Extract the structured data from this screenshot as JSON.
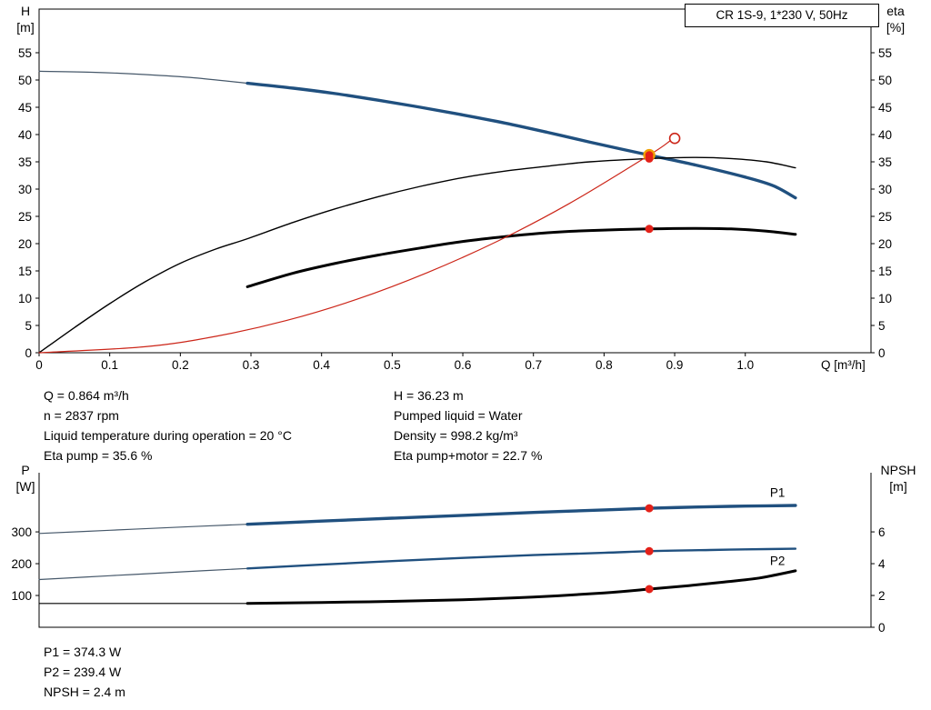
{
  "title_box": "CR 1S-9, 1*230 V, 50Hz",
  "colors": {
    "blue": "#20507f",
    "blue_thin": "#46586a",
    "black": "#000000",
    "red": "#cc2619",
    "marker_red": "#e32119",
    "marker_orange": "#f0a000"
  },
  "axis_corner_labels": {
    "h": [
      "H",
      "[m]"
    ],
    "eta": [
      "eta",
      "[%]"
    ],
    "p": [
      "P",
      "[W]"
    ],
    "npsh": [
      "NPSH",
      "[m]"
    ]
  },
  "readouts": {
    "left": [
      "Q = 0.864 m³/h",
      "n = 2837 rpm",
      "Liquid temperature during operation = 20 °C",
      "Eta pump = 35.6 %"
    ],
    "right": [
      "H = 36.23 m",
      "Pumped liquid = Water",
      "Density = 998.2 kg/m³",
      "Eta pump+motor = 22.7 %"
    ],
    "power": [
      "P1 = 374.3 W",
      "P2 = 239.4 W",
      "NPSH = 2.4 m"
    ]
  },
  "chart_data": [
    {
      "id": "top",
      "type": "line",
      "title": "CR 1S-9, 1*230 V, 50Hz",
      "xlabel": "Q [m³/h]",
      "ylabel_left": "H [m]",
      "ylabel_right": "eta [%]",
      "xlim": [
        0,
        1.178
      ],
      "ylim_left": [
        0,
        63
      ],
      "ylim_right": [
        0,
        63
      ],
      "frame": "box",
      "grid": false,
      "x_ticks": [
        {
          "v": 0,
          "t": "0"
        },
        {
          "v": 0.1,
          "t": "0.1"
        },
        {
          "v": 0.2,
          "t": "0.2"
        },
        {
          "v": 0.3,
          "t": "0.3"
        },
        {
          "v": 0.4,
          "t": "0.4"
        },
        {
          "v": 0.5,
          "t": "0.5"
        },
        {
          "v": 0.6,
          "t": "0.6"
        },
        {
          "v": 0.7,
          "t": "0.7"
        },
        {
          "v": 0.8,
          "t": "0.8"
        },
        {
          "v": 0.9,
          "t": "0.9"
        },
        {
          "v": 1.0,
          "t": "1.0"
        }
      ],
      "x_unit_label": "Q [m³/h]",
      "y_left_ticks": [
        0,
        5,
        10,
        15,
        20,
        25,
        30,
        35,
        40,
        45,
        50,
        55
      ],
      "y_right_ticks": [
        0,
        5,
        10,
        15,
        20,
        25,
        30,
        35,
        40,
        45,
        50,
        55
      ],
      "series": [
        {
          "name": "qh-curve-extension",
          "axis": "left",
          "color": "blue_thin",
          "width": 1.2,
          "points": [
            [
              0,
              51.6
            ],
            [
              0.08,
              51.4
            ],
            [
              0.15,
              51.0
            ],
            [
              0.22,
              50.4
            ],
            [
              0.295,
              49.4
            ]
          ]
        },
        {
          "name": "qh-curve",
          "axis": "left",
          "color": "blue",
          "width": 3.4,
          "points": [
            [
              0.295,
              49.4
            ],
            [
              0.36,
              48.5
            ],
            [
              0.42,
              47.5
            ],
            [
              0.48,
              46.3
            ],
            [
              0.54,
              45.0
            ],
            [
              0.6,
              43.6
            ],
            [
              0.66,
              42.1
            ],
            [
              0.72,
              40.4
            ],
            [
              0.78,
              38.6
            ],
            [
              0.864,
              36.23
            ],
            [
              0.93,
              34.4
            ],
            [
              1.0,
              32.2
            ],
            [
              1.04,
              30.6
            ],
            [
              1.071,
              28.4
            ]
          ]
        },
        {
          "name": "eta-pump-curve",
          "axis": "right",
          "color": "black",
          "width": 1.4,
          "points": [
            [
              0,
              0
            ],
            [
              0.05,
              4.6
            ],
            [
              0.1,
              9.0
            ],
            [
              0.15,
              13.0
            ],
            [
              0.2,
              16.4
            ],
            [
              0.25,
              19.0
            ],
            [
              0.295,
              20.9
            ],
            [
              0.36,
              23.9
            ],
            [
              0.42,
              26.4
            ],
            [
              0.48,
              28.6
            ],
            [
              0.54,
              30.5
            ],
            [
              0.6,
              32.1
            ],
            [
              0.66,
              33.3
            ],
            [
              0.72,
              34.2
            ],
            [
              0.78,
              35.0
            ],
            [
              0.864,
              35.6
            ],
            [
              0.93,
              35.8
            ],
            [
              0.98,
              35.6
            ],
            [
              1.03,
              35.0
            ],
            [
              1.071,
              33.9
            ]
          ]
        },
        {
          "name": "eta-pump-motor-curve",
          "axis": "right",
          "color": "black",
          "width": 3.0,
          "points": [
            [
              0.295,
              12.1
            ],
            [
              0.36,
              14.6
            ],
            [
              0.42,
              16.4
            ],
            [
              0.48,
              17.9
            ],
            [
              0.54,
              19.2
            ],
            [
              0.6,
              20.4
            ],
            [
              0.66,
              21.3
            ],
            [
              0.72,
              22.0
            ],
            [
              0.78,
              22.4
            ],
            [
              0.864,
              22.7
            ],
            [
              0.93,
              22.8
            ],
            [
              0.98,
              22.7
            ],
            [
              1.03,
              22.3
            ],
            [
              1.071,
              21.7
            ]
          ]
        },
        {
          "name": "system-curve",
          "axis": "left",
          "color": "red",
          "width": 1.2,
          "points": [
            [
              0,
              0
            ],
            [
              0.15,
              1.1
            ],
            [
              0.25,
              3.0
            ],
            [
              0.35,
              5.9
            ],
            [
              0.45,
              9.8
            ],
            [
              0.55,
              14.7
            ],
            [
              0.65,
              20.5
            ],
            [
              0.75,
              27.3
            ],
            [
              0.864,
              36.23
            ],
            [
              0.893,
              38.8
            ]
          ]
        }
      ],
      "markers": [
        {
          "name": "rated-point-marker",
          "axis": "left",
          "q": 0.9,
          "v": 39.3,
          "r": 5.5,
          "fill": "none",
          "stroke": "red",
          "sw": 1.6
        },
        {
          "name": "duty-point-marker",
          "axis": "left",
          "q": 0.864,
          "v": 36.23,
          "r": 5.5,
          "fill": "marker_red",
          "stroke": "marker_orange",
          "sw": 2.4
        },
        {
          "name": "eta-pump-point-marker",
          "axis": "right",
          "q": 0.864,
          "v": 35.6,
          "r": 4.5,
          "fill": "marker_red",
          "stroke": "none",
          "sw": 0
        },
        {
          "name": "eta-pump-motor-point-marker",
          "axis": "right",
          "q": 0.864,
          "v": 22.7,
          "r": 4.5,
          "fill": "marker_red",
          "stroke": "none",
          "sw": 0
        }
      ],
      "labels": []
    },
    {
      "id": "bottom",
      "type": "line",
      "title": "",
      "xlabel": "",
      "ylabel_left": "P [W]",
      "ylabel_right": "NPSH [m]",
      "xlim": [
        0,
        1.178
      ],
      "ylim_left": [
        0,
        486
      ],
      "ylim_right": [
        0,
        9.72
      ],
      "frame": "open",
      "grid": false,
      "x_ticks": [],
      "x_unit_label": "",
      "y_left_ticks": [
        100,
        200,
        300
      ],
      "y_right_ticks": [
        0,
        2,
        4,
        6
      ],
      "series": [
        {
          "name": "p1-curve-extension",
          "axis": "left",
          "color": "blue_thin",
          "width": 1.2,
          "points": [
            [
              0,
              295
            ],
            [
              0.1,
              305
            ],
            [
              0.2,
              315
            ],
            [
              0.295,
              324
            ]
          ]
        },
        {
          "name": "p1-curve",
          "axis": "left",
          "color": "blue",
          "width": 3.4,
          "points": [
            [
              0.295,
              324
            ],
            [
              0.4,
              334
            ],
            [
              0.5,
              343
            ],
            [
              0.6,
              352
            ],
            [
              0.7,
              361
            ],
            [
              0.8,
              369
            ],
            [
              0.864,
              374.3
            ],
            [
              0.95,
              379
            ],
            [
              1.0,
              381
            ],
            [
              1.071,
              383
            ]
          ]
        },
        {
          "name": "p2-curve-extension",
          "axis": "left",
          "color": "blue_thin",
          "width": 1.2,
          "points": [
            [
              0,
              150
            ],
            [
              0.1,
              162
            ],
            [
              0.2,
              174
            ],
            [
              0.295,
              185
            ]
          ]
        },
        {
          "name": "p2-curve",
          "axis": "left",
          "color": "blue",
          "width": 2.4,
          "points": [
            [
              0.295,
              185
            ],
            [
              0.4,
              197
            ],
            [
              0.5,
              208
            ],
            [
              0.6,
              218
            ],
            [
              0.7,
              227
            ],
            [
              0.8,
              234
            ],
            [
              0.864,
              239.4
            ],
            [
              0.95,
              243
            ],
            [
              1.0,
              245
            ],
            [
              1.071,
              247
            ]
          ]
        },
        {
          "name": "npsh-curve-extension",
          "axis": "right",
          "color": "black",
          "width": 1.1,
          "points": [
            [
              0,
              1.5
            ],
            [
              0.295,
              1.5
            ]
          ]
        },
        {
          "name": "npsh-curve",
          "axis": "right",
          "color": "black",
          "width": 3.0,
          "points": [
            [
              0.295,
              1.5
            ],
            [
              0.4,
              1.56
            ],
            [
              0.5,
              1.63
            ],
            [
              0.6,
              1.73
            ],
            [
              0.7,
              1.9
            ],
            [
              0.8,
              2.16
            ],
            [
              0.864,
              2.4
            ],
            [
              0.92,
              2.62
            ],
            [
              0.97,
              2.85
            ],
            [
              1.02,
              3.1
            ],
            [
              1.071,
              3.55
            ]
          ]
        }
      ],
      "markers": [
        {
          "name": "p1-point-marker",
          "axis": "left",
          "q": 0.864,
          "v": 374.3,
          "r": 4.5,
          "fill": "marker_red",
          "stroke": "none",
          "sw": 0
        },
        {
          "name": "p2-point-marker",
          "axis": "left",
          "q": 0.864,
          "v": 239.4,
          "r": 4.5,
          "fill": "marker_red",
          "stroke": "none",
          "sw": 0
        },
        {
          "name": "npsh-point-marker",
          "axis": "right",
          "q": 0.864,
          "v": 2.4,
          "r": 4.5,
          "fill": "marker_red",
          "stroke": "none",
          "sw": 0
        }
      ],
      "labels": [
        {
          "name": "p1-curve-label",
          "text": "P1",
          "axis": "left",
          "q": 1.035,
          "v": 410,
          "color": "blue"
        },
        {
          "name": "p2-curve-label",
          "text": "P2",
          "axis": "left",
          "q": 1.035,
          "v": 196,
          "color": "blue"
        }
      ]
    }
  ]
}
